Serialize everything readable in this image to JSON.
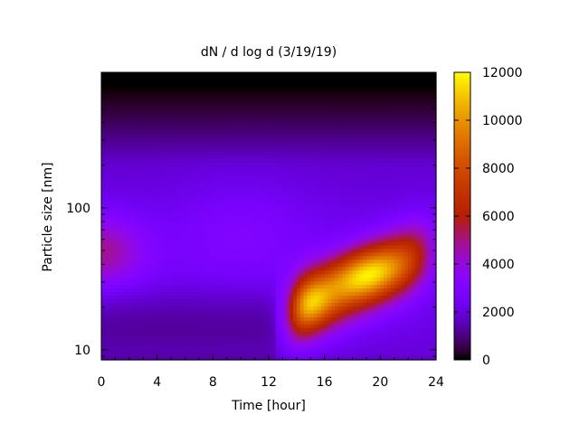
{
  "chart_data": {
    "type": "heatmap",
    "title": "dN / d log d (3/19/19)",
    "xlabel": "Time [hour]",
    "ylabel": "Particle size [nm]",
    "x_range": [
      0,
      24
    ],
    "x_ticks": [
      0,
      4,
      8,
      12,
      16,
      20,
      24
    ],
    "x_tick_labels": [
      "0",
      "4",
      "8",
      "12",
      "16",
      "20",
      "24"
    ],
    "y_scale": "log",
    "y_range": [
      8.5,
      900
    ],
    "y_ticks": [
      10,
      100
    ],
    "y_tick_labels": [
      "10",
      "100"
    ],
    "colorbar": {
      "range": [
        0,
        12000
      ],
      "ticks": [
        0,
        2000,
        4000,
        6000,
        8000,
        10000,
        12000
      ],
      "tick_labels": [
        "0",
        "2000",
        "4000",
        "6000",
        "8000",
        "10000",
        "12000"
      ],
      "palette": "gnuplot black-purple-red-orange-yellow"
    },
    "features": [
      {
        "time_h": 0,
        "size_nm": 50,
        "value": 5000
      },
      {
        "time_h": 10,
        "size_nm": 70,
        "value": 3800
      },
      {
        "time_h": 14.8,
        "size_nm": 23,
        "value": 9500
      },
      {
        "time_h": 18.8,
        "size_nm": 38,
        "value": 9800
      },
      {
        "time_h": 22,
        "size_nm": 45,
        "value": 6500
      }
    ],
    "background_value": 2500,
    "upper_edge_value": 0
  }
}
